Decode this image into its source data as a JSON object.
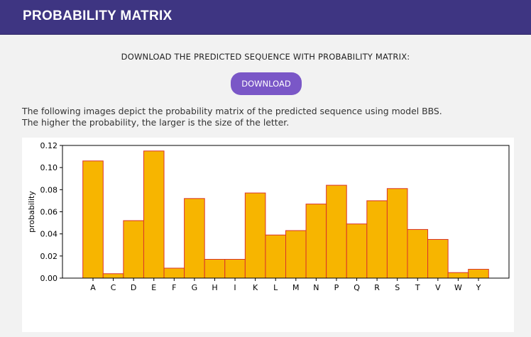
{
  "header": {
    "title": "PROBABILITY MATRIX"
  },
  "main": {
    "download_heading": "DOWNLOAD THE PREDICTED SEQUENCE WITH PROBABILITY MATRIX:",
    "download_button": "DOWNLOAD",
    "description_line1": "The following images depict the probability matrix of the predicted sequence using model BBS.",
    "description_line2": "The higher the probability, the larger is the size of the letter."
  },
  "colors": {
    "header_bg": "#3e3582",
    "button_bg": "#7a57c7",
    "bar_fill": "#f7b500",
    "bar_edge": "#d9342b"
  },
  "chart_data": {
    "type": "bar",
    "categories": [
      "A",
      "C",
      "D",
      "E",
      "F",
      "G",
      "H",
      "I",
      "K",
      "L",
      "M",
      "N",
      "P",
      "Q",
      "R",
      "S",
      "T",
      "V",
      "W",
      "Y"
    ],
    "values": [
      0.106,
      0.004,
      0.052,
      0.115,
      0.009,
      0.072,
      0.017,
      0.017,
      0.077,
      0.039,
      0.043,
      0.067,
      0.084,
      0.049,
      0.07,
      0.081,
      0.044,
      0.035,
      0.005,
      0.008
    ],
    "xlabel": "",
    "ylabel": "probability",
    "ylim": [
      0,
      0.12
    ],
    "yticks": [
      "0.00",
      "0.02",
      "0.04",
      "0.06",
      "0.08",
      "0.10",
      "0.12"
    ],
    "grid": false
  }
}
